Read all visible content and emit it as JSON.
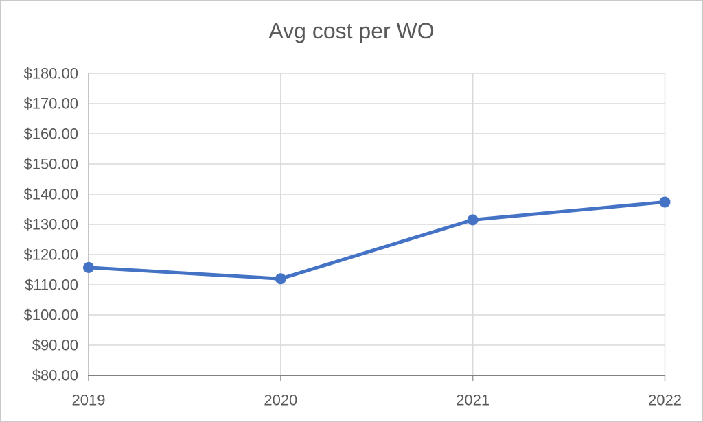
{
  "window": {
    "background_color": "#ffffff",
    "frame_border_color": "#c9c9c9"
  },
  "chart_data": {
    "type": "line",
    "title": "Avg cost per WO",
    "categories": [
      "2019",
      "2020",
      "2021",
      "2022"
    ],
    "series": [
      {
        "name": "Avg cost per WO",
        "color": "#4472C4",
        "values": [
          115.7,
          112.0,
          131.5,
          137.4
        ]
      }
    ],
    "xlabel": "",
    "ylabel": "",
    "ylim": [
      80,
      180
    ],
    "y_tick_step": 10,
    "y_ticks": [
      {
        "value": 180,
        "label": "$180.00"
      },
      {
        "value": 170,
        "label": "$170.00"
      },
      {
        "value": 160,
        "label": "$160.00"
      },
      {
        "value": 150,
        "label": "$150.00"
      },
      {
        "value": 140,
        "label": "$140.00"
      },
      {
        "value": 130,
        "label": "$130.00"
      },
      {
        "value": 120,
        "label": "$120.00"
      },
      {
        "value": 110,
        "label": "$110.00"
      },
      {
        "value": 100,
        "label": "$100.00"
      },
      {
        "value": 90,
        "label": "$90.00"
      },
      {
        "value": 80,
        "label": "$80.00"
      }
    ],
    "grid": true,
    "legend_position": "none",
    "marker": "circle",
    "colors": {
      "line": "#4472C4",
      "gridline": "#D9D9D9",
      "x_axis": "#808080",
      "y_axis": "#B7B7B7",
      "tick": "#9E9E9E",
      "tick_label": "#595959",
      "title": "#595959"
    }
  }
}
